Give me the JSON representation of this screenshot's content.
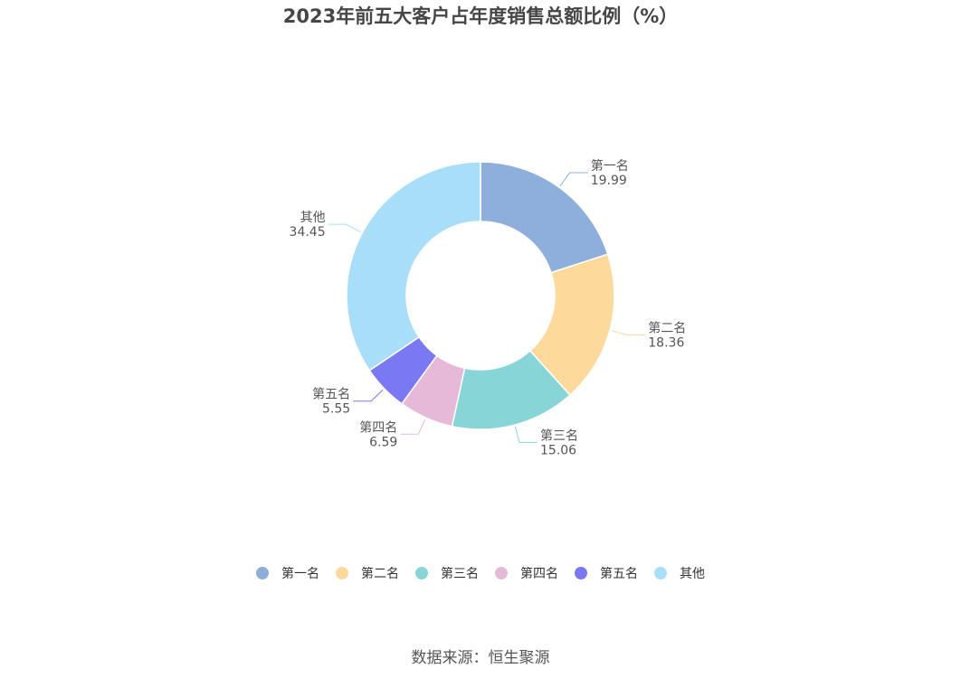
{
  "chart_data": {
    "type": "pie",
    "subtype": "donut",
    "title": "2023年前五大客户占年度销售总额比例（%）",
    "categories": [
      "第一名",
      "第二名",
      "第三名",
      "第四名",
      "第五名",
      "其他"
    ],
    "values": [
      19.99,
      18.36,
      15.06,
      6.59,
      5.55,
      34.45
    ],
    "value_labels": [
      "19.99",
      "18.36",
      "15.06",
      "6.59",
      "5.55",
      "34.45"
    ],
    "colors": [
      "#8eaedb",
      "#fdd99b",
      "#88d5d8",
      "#e6b9d8",
      "#7b78f3",
      "#a9def8"
    ],
    "legend_position": "bottom"
  },
  "source": "数据来源：恒生聚源"
}
